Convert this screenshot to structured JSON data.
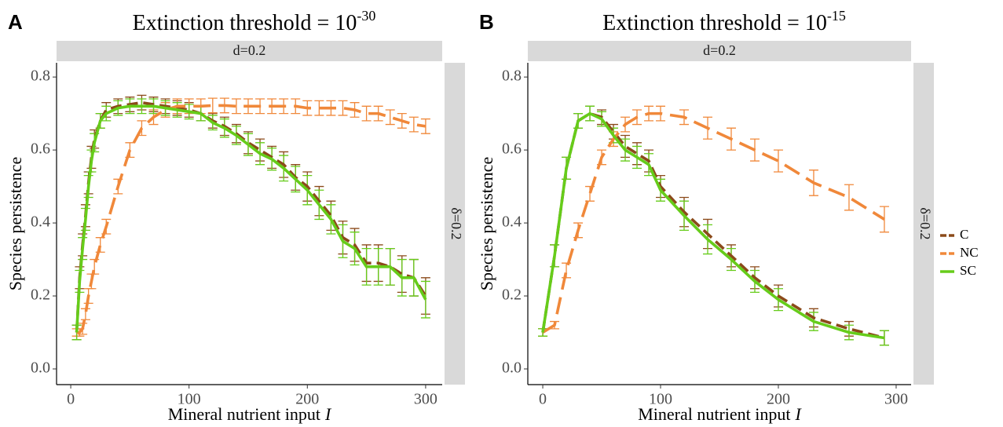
{
  "chart_data": [
    {
      "type": "line",
      "panel": "A",
      "title": "Extinction threshold = 10",
      "title_exponent": "-30",
      "facet_col": "d=0.2",
      "facet_row": "δ=0.2",
      "x_label": "Mineral nutrient input",
      "x_label_var": "I",
      "y_label": "Species persistence",
      "xlim": [
        -12,
        314
      ],
      "ylim": [
        -0.043,
        0.839
      ],
      "xticks": [
        0,
        100,
        200,
        300
      ],
      "yticks": [
        {
          "value": 0,
          "label": "0.0"
        },
        0.2,
        0.4,
        0.6,
        0.8
      ],
      "grid": false,
      "legend": "none",
      "x": [
        5,
        7.5,
        10,
        12.5,
        15,
        17.5,
        20,
        25,
        30,
        40,
        50,
        60,
        70,
        80,
        90,
        100,
        110,
        120,
        130,
        140,
        150,
        160,
        170,
        180,
        190,
        200,
        210,
        220,
        230,
        240,
        250,
        260,
        270,
        280,
        290,
        300
      ],
      "series": [
        {
          "name": "C",
          "color": "#8b4a1a",
          "dash": "14,7",
          "values": [
            0.1,
            0.25,
            0.34,
            0.42,
            0.51,
            0.58,
            0.63,
            0.68,
            0.71,
            0.72,
            0.725,
            0.73,
            0.725,
            0.72,
            0.715,
            0.71,
            0.7,
            0.68,
            0.665,
            0.645,
            0.62,
            0.6,
            0.58,
            0.56,
            0.525,
            0.5,
            0.46,
            0.42,
            0.36,
            0.34,
            0.29,
            0.29,
            0.28,
            0.26,
            0.25,
            0.2
          ],
          "errors": [
            0.02,
            0.03,
            0.03,
            0.03,
            0.03,
            0.03,
            0.025,
            0.02,
            0.02,
            0.02,
            0.02,
            0.02,
            0.02,
            0.02,
            0.02,
            0.02,
            0.02,
            0.02,
            0.025,
            0.025,
            0.03,
            0.03,
            0.03,
            0.035,
            0.035,
            0.04,
            0.04,
            0.04,
            0.045,
            0.045,
            0.05,
            0.05,
            0.05,
            0.05,
            0.05,
            0.05
          ]
        },
        {
          "name": "NC",
          "color": "#f0883a",
          "dash": "22,10",
          "values": [
            0.1,
            0.1,
            0.11,
            0.15,
            0.2,
            0.24,
            0.28,
            0.34,
            0.39,
            0.5,
            0.6,
            0.66,
            0.69,
            0.71,
            0.72,
            0.72,
            0.72,
            0.722,
            0.722,
            0.72,
            0.72,
            0.72,
            0.72,
            0.72,
            0.72,
            0.715,
            0.715,
            0.715,
            0.715,
            0.71,
            0.7,
            0.7,
            0.69,
            0.68,
            0.67,
            0.665
          ],
          "errors": [
            0.01,
            0.01,
            0.015,
            0.015,
            0.02,
            0.02,
            0.02,
            0.02,
            0.02,
            0.02,
            0.02,
            0.02,
            0.02,
            0.02,
            0.02,
            0.02,
            0.02,
            0.02,
            0.02,
            0.02,
            0.02,
            0.02,
            0.02,
            0.02,
            0.02,
            0.02,
            0.02,
            0.02,
            0.02,
            0.02,
            0.02,
            0.02,
            0.02,
            0.02,
            0.02,
            0.02
          ]
        },
        {
          "name": "SC",
          "color": "#66cc1a",
          "dash": "none",
          "values": [
            0.1,
            0.24,
            0.33,
            0.41,
            0.5,
            0.57,
            0.62,
            0.68,
            0.7,
            0.715,
            0.72,
            0.72,
            0.72,
            0.715,
            0.71,
            0.705,
            0.7,
            0.675,
            0.66,
            0.64,
            0.615,
            0.59,
            0.575,
            0.55,
            0.52,
            0.49,
            0.45,
            0.41,
            0.35,
            0.33,
            0.28,
            0.28,
            0.28,
            0.25,
            0.25,
            0.19
          ],
          "errors": [
            0.02,
            0.03,
            0.03,
            0.03,
            0.03,
            0.03,
            0.025,
            0.02,
            0.02,
            0.02,
            0.02,
            0.02,
            0.02,
            0.02,
            0.02,
            0.02,
            0.02,
            0.02,
            0.025,
            0.025,
            0.03,
            0.03,
            0.03,
            0.035,
            0.035,
            0.04,
            0.04,
            0.04,
            0.045,
            0.045,
            0.05,
            0.05,
            0.05,
            0.05,
            0.05,
            0.05
          ]
        }
      ]
    },
    {
      "type": "line",
      "panel": "B",
      "title": "Extinction threshold = 10",
      "title_exponent": "-15",
      "facet_col": "d=0.2",
      "facet_row": "δ=0.2",
      "x_label": "Mineral nutrient input",
      "x_label_var": "I",
      "y_label": "Species persistence",
      "xlim": [
        -12.7,
        312.7
      ],
      "ylim": [
        -0.043,
        0.839
      ],
      "xticks": [
        0,
        100,
        200,
        300
      ],
      "yticks": [
        {
          "value": 0,
          "label": "0.0"
        },
        0.2,
        0.4,
        0.6,
        0.8
      ],
      "grid": false,
      "legend": "right",
      "x": [
        0,
        10,
        20,
        30,
        40,
        50,
        60,
        70,
        80,
        90,
        100,
        120,
        140,
        160,
        180,
        200,
        230,
        260,
        290
      ],
      "series": [
        {
          "name": "C",
          "color": "#8b4a1a",
          "dash": "14,7",
          "values": [
            0.1,
            0.31,
            0.55,
            0.68,
            0.7,
            0.69,
            0.65,
            0.61,
            0.59,
            0.57,
            0.5,
            0.43,
            0.37,
            0.31,
            0.25,
            0.2,
            0.14,
            0.11,
            0.085
          ],
          "errors": [
            0.01,
            0.03,
            0.03,
            0.02,
            0.02,
            0.02,
            0.02,
            0.03,
            0.03,
            0.03,
            0.03,
            0.04,
            0.04,
            0.03,
            0.03,
            0.03,
            0.025,
            0.02,
            0.02
          ]
        },
        {
          "name": "NC",
          "color": "#f0883a",
          "dash": "22,10",
          "values": [
            0.1,
            0.12,
            0.27,
            0.38,
            0.48,
            0.58,
            0.63,
            0.67,
            0.69,
            0.7,
            0.7,
            0.69,
            0.66,
            0.63,
            0.6,
            0.57,
            0.51,
            0.47,
            0.41
          ],
          "errors": [
            0.01,
            0.01,
            0.02,
            0.02,
            0.02,
            0.02,
            0.02,
            0.02,
            0.02,
            0.02,
            0.02,
            0.02,
            0.03,
            0.03,
            0.03,
            0.03,
            0.035,
            0.035,
            0.035
          ]
        },
        {
          "name": "SC",
          "color": "#66cc1a",
          "dash": "none",
          "values": [
            0.1,
            0.31,
            0.55,
            0.68,
            0.7,
            0.685,
            0.64,
            0.6,
            0.58,
            0.56,
            0.49,
            0.42,
            0.355,
            0.3,
            0.24,
            0.19,
            0.13,
            0.1,
            0.085
          ],
          "errors": [
            0.01,
            0.03,
            0.03,
            0.02,
            0.02,
            0.02,
            0.02,
            0.03,
            0.03,
            0.03,
            0.03,
            0.04,
            0.04,
            0.03,
            0.03,
            0.03,
            0.025,
            0.02,
            0.02
          ]
        }
      ]
    }
  ]
}
